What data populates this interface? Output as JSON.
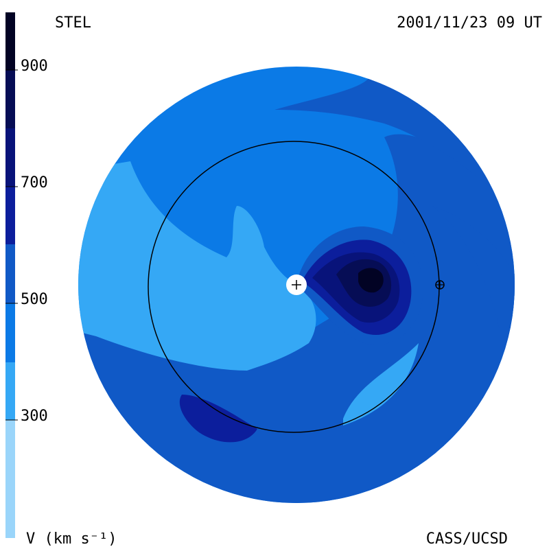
{
  "header": {
    "source": "STEL",
    "timestamp": "2001/11/23 09 UT"
  },
  "footer": {
    "quantity_label": "V (km s⁻¹)",
    "credit": "CASS/UCSD"
  },
  "colorbar": {
    "ticks": [
      "900",
      "700",
      "500",
      "300"
    ],
    "bands": [
      {
        "min": 200,
        "max": 300,
        "color": "#9ad5fa"
      },
      {
        "min": 300,
        "max": 400,
        "color": "#35a8f5"
      },
      {
        "min": 400,
        "max": 500,
        "color": "#0b7ae6"
      },
      {
        "min": 500,
        "max": 600,
        "color": "#1059c6"
      },
      {
        "min": 600,
        "max": 700,
        "color": "#0c1e9c"
      },
      {
        "min": 700,
        "max": 800,
        "color": "#08137a"
      },
      {
        "min": 800,
        "max": 900,
        "color": "#060d55"
      },
      {
        "min": 900,
        "max": 1000,
        "color": "#020324"
      }
    ]
  },
  "map": {
    "sun_icon": "sun-plus-icon",
    "earth_icon": "earth-circle-plus-icon",
    "orbit": "earth-orbit"
  }
}
